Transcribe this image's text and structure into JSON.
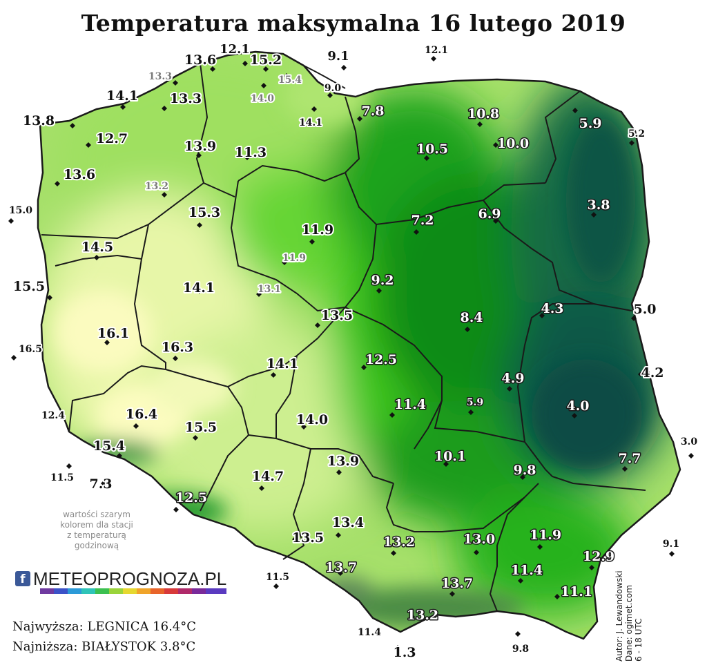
{
  "title": "Temperatura maksymalna 16 lutego 2019",
  "note": [
    "wartości szarym",
    "kolorem dla stacji",
    "z temperaturą",
    "godzinową"
  ],
  "logo": {
    "icon": "facebook-icon",
    "text": "METEOPROGNOZA.PL"
  },
  "extremes": {
    "highest": "Najwyższa: LEGNICA 16.4°C",
    "lowest": "Najniższa: BIAŁYSTOK 3.8°C"
  },
  "credits": [
    "Autor: J. Lewandowski",
    "Dane: ogimet.com",
    "6 - 18 UTC"
  ],
  "colors": {
    "warmest": "#fdfcb8",
    "warm": "#e4f5a6",
    "mild": "#b8ea70",
    "green": "#6fd83a",
    "bright_green": "#3ec81a",
    "dark_green": "#139a18",
    "teal": "#106a46",
    "deep_teal": "#0e5247",
    "mountains": "#6a8a5a",
    "borders": "#1a1a1a",
    "gray_label": "#7a7a7a"
  },
  "stations": [
    {
      "v": "13.6",
      "s": "b"
    },
    {
      "v": "12.1",
      "s": "b"
    },
    {
      "v": "15.2",
      "s": "b"
    },
    {
      "v": "9.1",
      "s": "b"
    },
    {
      "v": "12.1",
      "s": "s"
    },
    {
      "v": "13.3",
      "s": "g"
    },
    {
      "v": "15.4",
      "s": "g"
    },
    {
      "v": "14.0",
      "s": "g"
    },
    {
      "v": "9.0",
      "s": "s"
    },
    {
      "v": "14.1",
      "s": "b"
    },
    {
      "v": "13.3",
      "s": "b"
    },
    {
      "v": "7.8",
      "s": "w"
    },
    {
      "v": "10.8",
      "s": "w"
    },
    {
      "v": "14.1",
      "s": "s"
    },
    {
      "v": "13.8",
      "s": "b"
    },
    {
      "v": "12.7",
      "s": "b"
    },
    {
      "v": "13.9",
      "s": "b"
    },
    {
      "v": "11.3",
      "s": "b"
    },
    {
      "v": "10.5",
      "s": "w"
    },
    {
      "v": "10.0",
      "s": "w"
    },
    {
      "v": "5.9",
      "s": "w"
    },
    {
      "v": "5.2",
      "s": "s"
    },
    {
      "v": "13.6",
      "s": "b"
    },
    {
      "v": "13.2",
      "s": "g"
    },
    {
      "v": "15.0",
      "s": "s"
    },
    {
      "v": "15.3",
      "s": "b"
    },
    {
      "v": "11.9",
      "s": "b"
    },
    {
      "v": "7.2",
      "s": "w"
    },
    {
      "v": "6.9",
      "s": "w"
    },
    {
      "v": "3.8",
      "s": "w"
    },
    {
      "v": "14.5",
      "s": "b"
    },
    {
      "v": "11.9",
      "s": "g"
    },
    {
      "v": "9.2",
      "s": "w"
    },
    {
      "v": "15.5",
      "s": "b"
    },
    {
      "v": "14.1",
      "s": "b"
    },
    {
      "v": "13.1",
      "s": "g"
    },
    {
      "v": "13.5",
      "s": "b"
    },
    {
      "v": "8.4",
      "s": "w"
    },
    {
      "v": "4.3",
      "s": "w"
    },
    {
      "v": "5.0",
      "s": "b"
    },
    {
      "v": "16.1",
      "s": "b"
    },
    {
      "v": "16.3",
      "s": "b"
    },
    {
      "v": "16.5",
      "s": "s"
    },
    {
      "v": "14.1",
      "s": "b"
    },
    {
      "v": "12.5",
      "s": "w"
    },
    {
      "v": "4.9",
      "s": "w"
    },
    {
      "v": "4.2",
      "s": "b"
    },
    {
      "v": "11.4",
      "s": "w"
    },
    {
      "v": "5.9",
      "s": "w"
    },
    {
      "v": "4.0",
      "s": "w"
    },
    {
      "v": "12.4",
      "s": "s"
    },
    {
      "v": "16.4",
      "s": "b"
    },
    {
      "v": "15.5",
      "s": "b"
    },
    {
      "v": "14.0",
      "s": "b"
    },
    {
      "v": "3.0",
      "s": "s"
    },
    {
      "v": "15.4",
      "s": "b"
    },
    {
      "v": "13.9",
      "s": "b"
    },
    {
      "v": "10.1",
      "s": "w"
    },
    {
      "v": "7.7",
      "s": "w"
    },
    {
      "v": "11.5",
      "s": "s"
    },
    {
      "v": "7.3",
      "s": "b"
    },
    {
      "v": "14.7",
      "s": "b"
    },
    {
      "v": "9.8",
      "s": "w"
    },
    {
      "v": "12.5",
      "s": "w"
    },
    {
      "v": "13.4",
      "s": "b"
    },
    {
      "v": "13.5",
      "s": "b"
    },
    {
      "v": "13.2",
      "s": "w"
    },
    {
      "v": "13.0",
      "s": "w"
    },
    {
      "v": "11.9",
      "s": "w"
    },
    {
      "v": "12.9",
      "s": "w"
    },
    {
      "v": "9.1",
      "s": "s"
    },
    {
      "v": "11.5",
      "s": "s"
    },
    {
      "v": "13.7",
      "s": "w"
    },
    {
      "v": "13.7",
      "s": "w"
    },
    {
      "v": "11.4",
      "s": "w"
    },
    {
      "v": "11.1",
      "s": "w"
    },
    {
      "v": "13.2",
      "s": "w"
    },
    {
      "v": "11.4",
      "s": "s"
    },
    {
      "v": "9.8",
      "s": "s"
    },
    {
      "v": "1.3",
      "s": "b"
    }
  ]
}
